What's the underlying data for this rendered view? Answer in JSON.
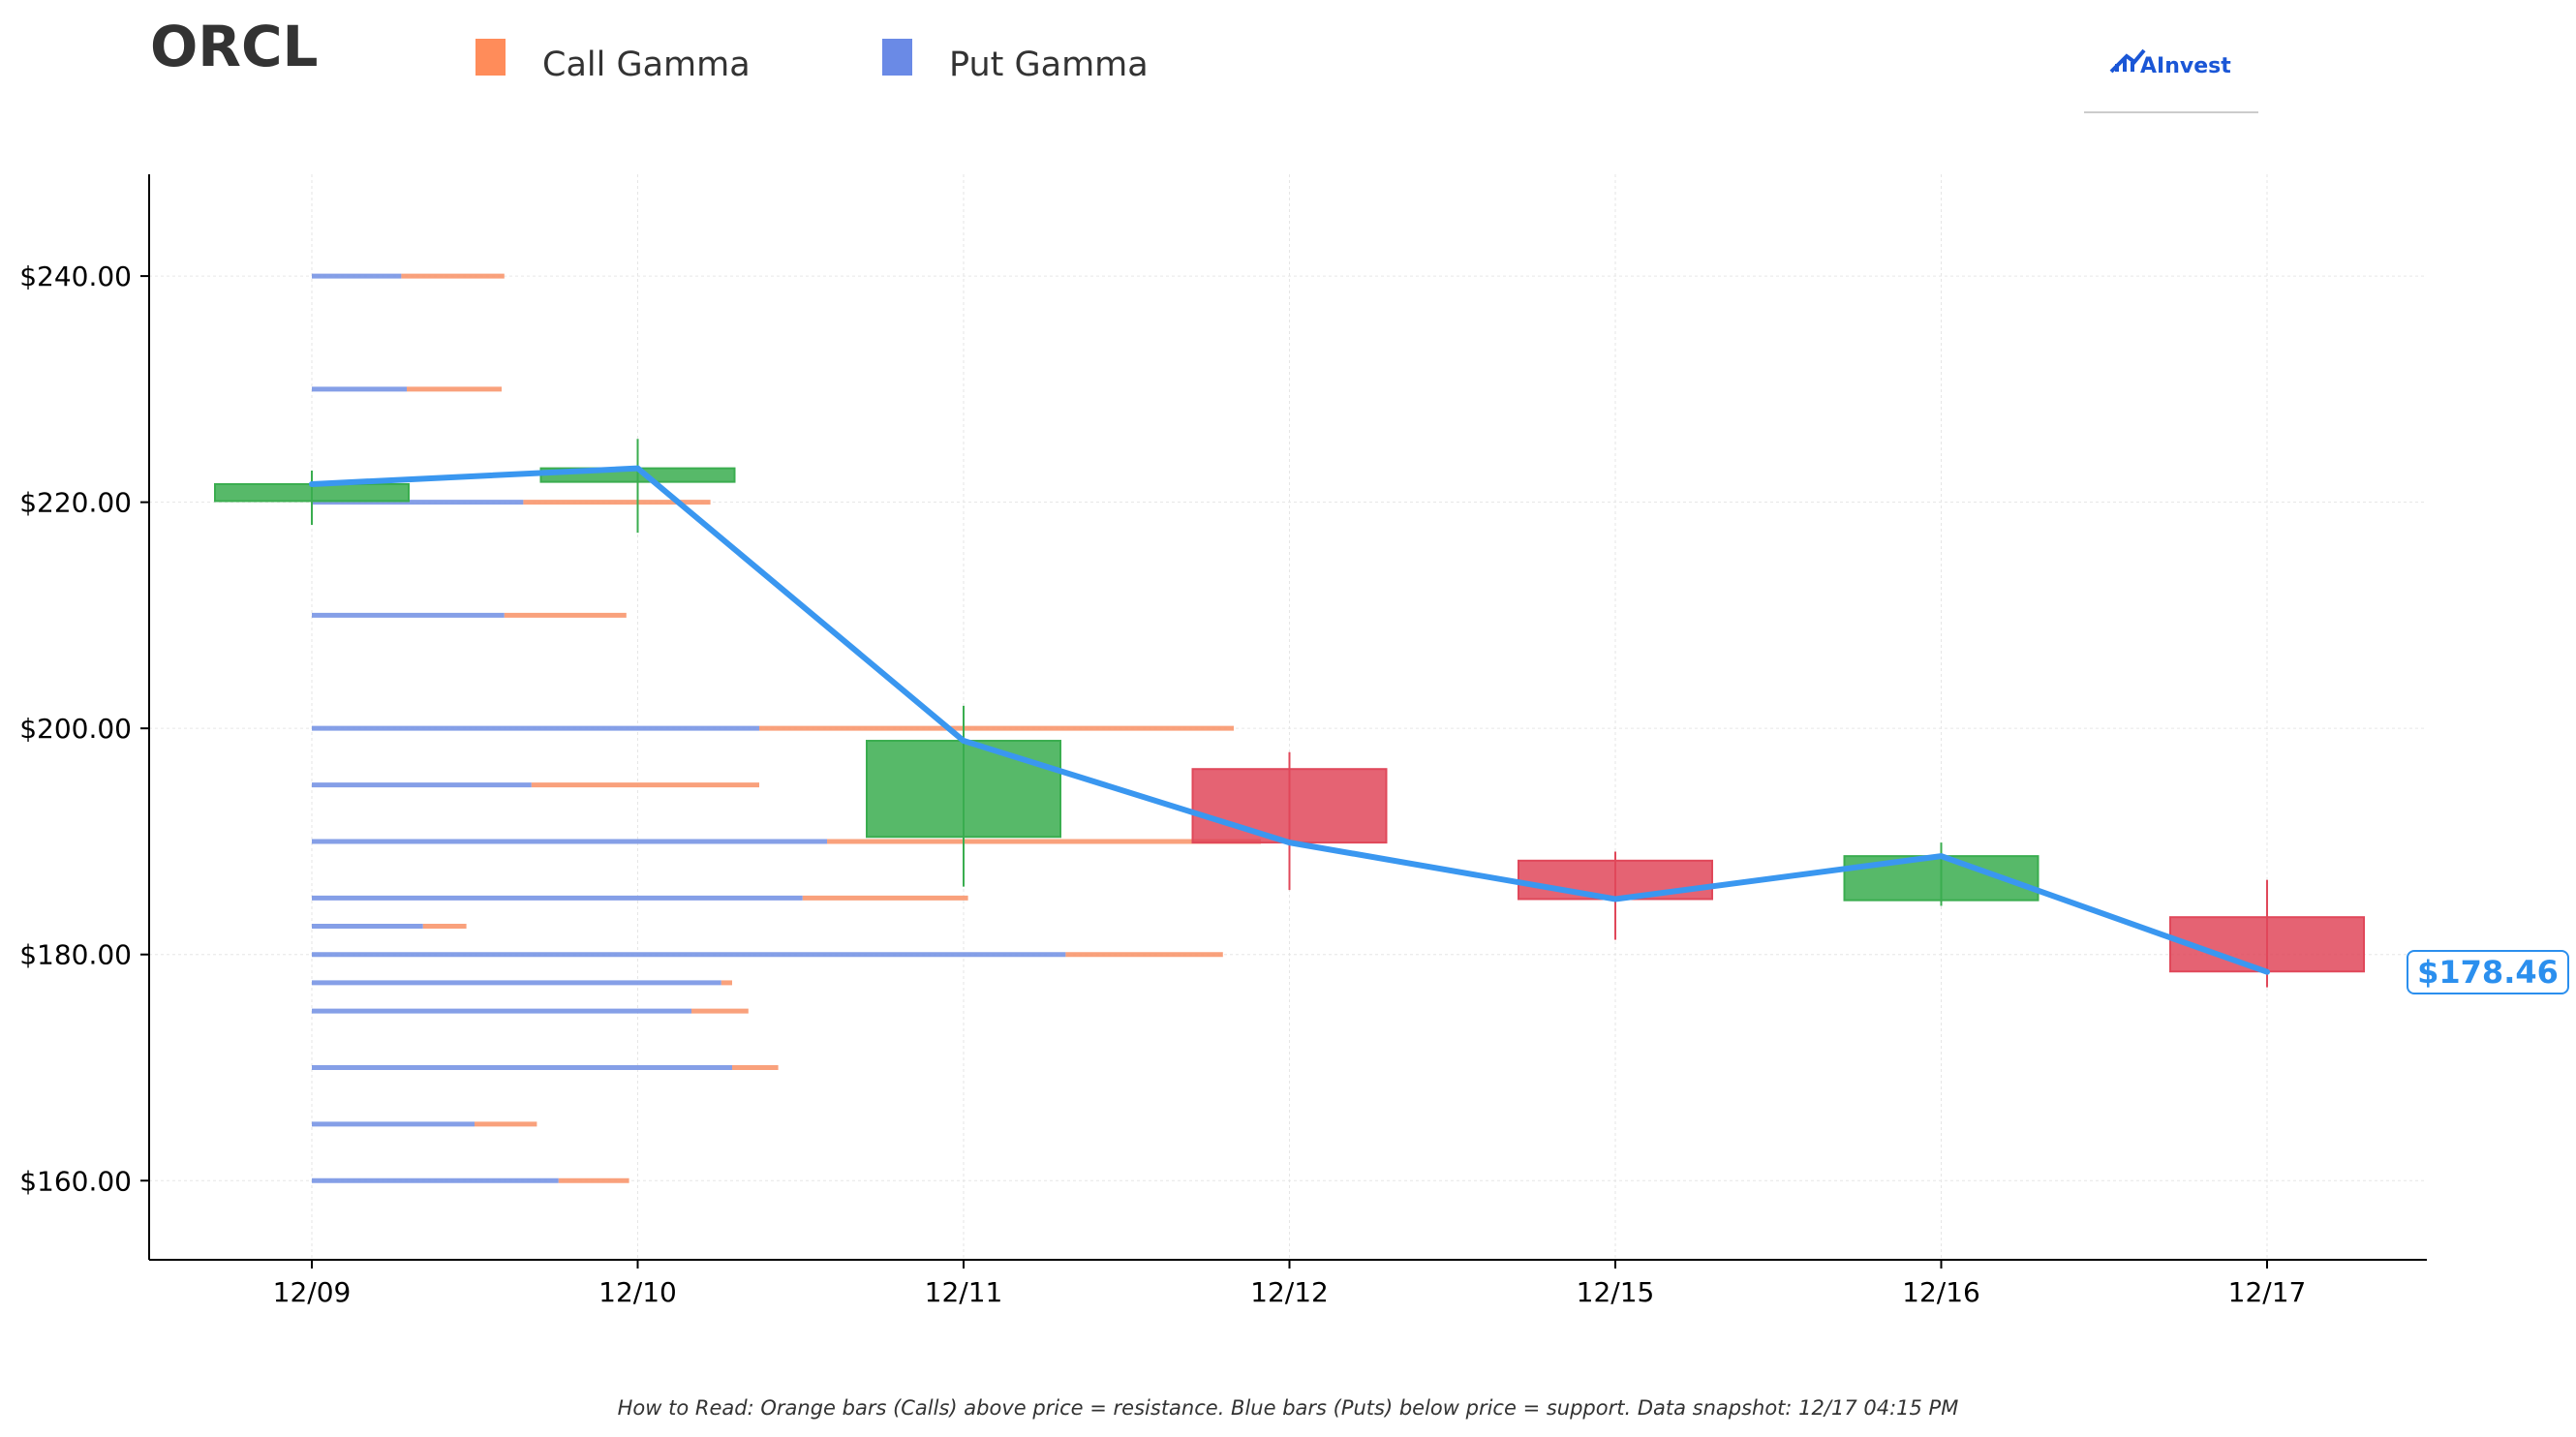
{
  "title": "ORCL",
  "legend": [
    {
      "label": "Call Gamma",
      "color": "#ff8c5a"
    },
    {
      "label": "Put Gamma",
      "color": "#6a8ae6"
    }
  ],
  "logo": {
    "text": "AInvest"
  },
  "footer_note": "How to Read: Orange bars (Calls) above price = resistance. Blue bars (Puts) below price = support. Data snapshot: 12/17 04:15 PM",
  "current_price_label": "$178.46",
  "colors": {
    "call": "#f99c75",
    "put": "#7f9ae6",
    "up": "#3aad4f",
    "down": "#e0485a",
    "price_line": "#3a97f0",
    "price_tag": "#2b8fee"
  },
  "chart_data": {
    "type": "candlestick",
    "title": "ORCL",
    "categories": [
      "12/09",
      "12/10",
      "12/11",
      "12/12",
      "12/15",
      "12/16",
      "12/17"
    ],
    "ylim": [
      153,
      249
    ],
    "yticks": [
      160,
      180,
      200,
      220,
      240
    ],
    "ytick_labels": [
      "$160.00",
      "$180.00",
      "$200.00",
      "$220.00",
      "$240.00"
    ],
    "grid": true,
    "legend_position": "top",
    "candles": [
      {
        "date": "12/09",
        "open": 220.1,
        "high": 222.8,
        "low": 218.0,
        "close": 221.6
      },
      {
        "date": "12/10",
        "open": 221.8,
        "high": 225.6,
        "low": 217.3,
        "close": 223.0
      },
      {
        "date": "12/11",
        "open": 190.4,
        "high": 202.0,
        "low": 186.0,
        "close": 198.9
      },
      {
        "date": "12/12",
        "open": 196.4,
        "high": 197.9,
        "low": 185.7,
        "close": 189.9
      },
      {
        "date": "12/15",
        "open": 188.3,
        "high": 189.1,
        "low": 181.3,
        "close": 184.9
      },
      {
        "date": "12/16",
        "open": 184.8,
        "high": 189.9,
        "low": 184.3,
        "close": 188.7
      },
      {
        "date": "12/17",
        "open": 183.3,
        "high": 186.6,
        "low": 177.1,
        "close": 178.5
      }
    ],
    "close_line": [
      221.6,
      223.0,
      198.9,
      189.9,
      184.9,
      188.7,
      178.46
    ],
    "gamma_levels": [
      {
        "strike": 240,
        "put": 0.33,
        "call": 0.38
      },
      {
        "strike": 230,
        "put": 0.35,
        "call": 0.35
      },
      {
        "strike": 220,
        "put": 0.78,
        "call": 0.69
      },
      {
        "strike": 210,
        "put": 0.71,
        "call": 0.45
      },
      {
        "strike": 200,
        "put": 1.65,
        "call": 1.75
      },
      {
        "strike": 195,
        "put": 0.81,
        "call": 0.84
      },
      {
        "strike": 190,
        "put": 1.9,
        "call": 1.6
      },
      {
        "strike": 185,
        "put": 1.81,
        "call": 0.61
      },
      {
        "strike": 182.5,
        "put": 0.41,
        "call": 0.16
      },
      {
        "strike": 180,
        "put": 2.78,
        "call": 0.58
      },
      {
        "strike": 177.5,
        "put": 1.51,
        "call": 0.04
      },
      {
        "strike": 175,
        "put": 1.4,
        "call": 0.21
      },
      {
        "strike": 170,
        "put": 1.55,
        "call": 0.17
      },
      {
        "strike": 165,
        "put": 0.6,
        "call": 0.23
      },
      {
        "strike": 160,
        "put": 0.91,
        "call": 0.26
      }
    ]
  }
}
